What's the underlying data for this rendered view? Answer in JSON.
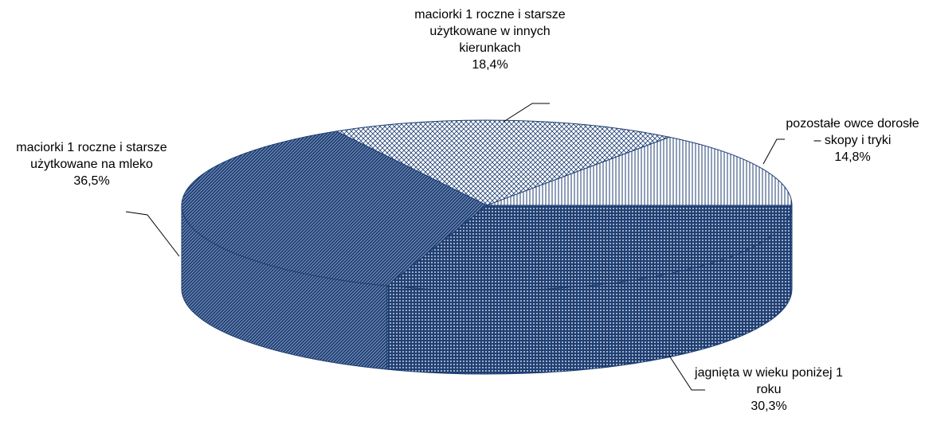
{
  "chart_data": {
    "type": "pie3d",
    "categories": [
      "pozostałe owce dorosłe – skopy i tryki",
      "maciorki 1 roczne i starsze użytkowane w innych kierunkach",
      "maciorki 1 roczne i starsze użytkowane na mleko",
      "jagnięta w wieku poniżej 1 roku"
    ],
    "values": [
      14.8,
      18.4,
      36.5,
      30.3
    ],
    "value_labels": [
      "14,8%",
      "18,4%",
      "36,5%",
      "30,3%"
    ],
    "colors": [
      "#1f3f73",
      "#1f3f73",
      "#1f3f73",
      "#1f3f73"
    ],
    "patterns": [
      "vertical",
      "crosshatch",
      "diagonal",
      "dots"
    ]
  }
}
